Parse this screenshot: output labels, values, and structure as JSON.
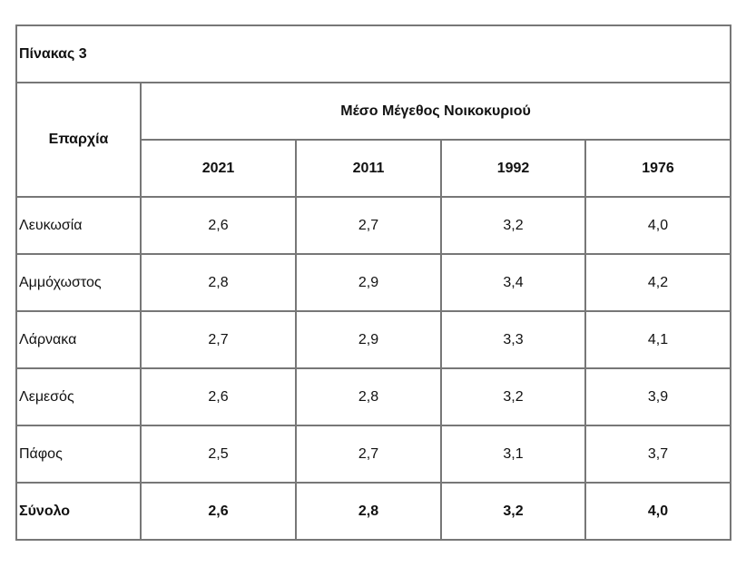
{
  "table": {
    "title": "Πίνακας 3",
    "region_header": "Επαρχία",
    "group_header": "Μέσο Μέγεθος Νοικοκυριού",
    "years": [
      "2021",
      "2011",
      "1992",
      "1976"
    ],
    "rows": [
      {
        "name": "Λευκωσία",
        "values": [
          "2,6",
          "2,7",
          "3,2",
          "4,0"
        ]
      },
      {
        "name": "Αμμόχωστος",
        "values": [
          "2,8",
          "2,9",
          "3,4",
          "4,2"
        ]
      },
      {
        "name": "Λάρνακα",
        "values": [
          "2,7",
          "2,9",
          "3,3",
          "4,1"
        ]
      },
      {
        "name": "Λεμεσός",
        "values": [
          "2,6",
          "2,8",
          "3,2",
          "3,9"
        ]
      },
      {
        "name": "Πάφος",
        "values": [
          "2,5",
          "2,7",
          "3,1",
          "3,7"
        ]
      },
      {
        "name": "Σύνολο",
        "values": [
          "2,6",
          "2,8",
          "3,2",
          "4,0"
        ],
        "total": true
      }
    ]
  }
}
